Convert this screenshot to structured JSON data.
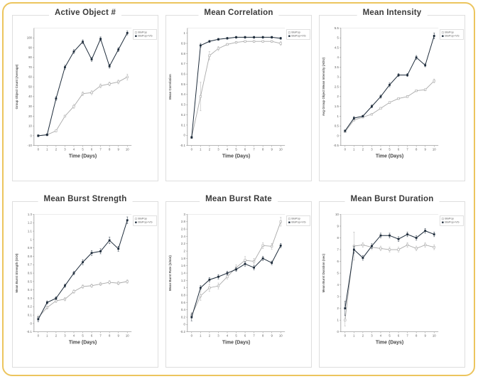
{
  "panel": {
    "border_color": "#ecc55e",
    "background": "#ffffff"
  },
  "palette": {
    "series_dark": "#1d2b3a",
    "series_light": "#a9a9a9",
    "axis": "#8c8c8c",
    "tick_text": "#5a5a5a",
    "title_text": "#3a3a3a"
  },
  "series_labels": [
    "BioPop",
    "BioPop+VG"
  ],
  "chart_data": [
    {
      "type": "line",
      "title": "Active Object #",
      "xlabel": "Time (Days)",
      "ylabel": "Group Object Count (Average)",
      "x": [
        0,
        1,
        2,
        3,
        4,
        5,
        6,
        7,
        8,
        9,
        10
      ],
      "yticks": [
        -10,
        0,
        10,
        20,
        30,
        40,
        50,
        60,
        70,
        80,
        90,
        100
      ],
      "ylim": [
        -10,
        110
      ],
      "legend_position": "right-top",
      "series": [
        {
          "name": "BioPop",
          "color": "#a9a9a9",
          "marker": "open-square",
          "values": [
            0,
            1,
            5,
            20,
            30,
            43,
            44,
            51,
            53,
            55,
            60
          ],
          "err": [
            1,
            1,
            1,
            1,
            2,
            2,
            2,
            2,
            2,
            2,
            3
          ]
        },
        {
          "name": "BioPop+VG",
          "color": "#1d2b3a",
          "marker": "filled-square",
          "values": [
            0,
            1,
            38,
            70,
            86,
            96,
            78,
            99,
            71,
            88,
            105
          ],
          "err": [
            1,
            1,
            2,
            2,
            2,
            2,
            2,
            2,
            2,
            2,
            2
          ]
        }
      ]
    },
    {
      "type": "line",
      "title": "Mean Correlation",
      "xlabel": "Time (Days)",
      "ylabel": "Mean Correlation",
      "x": [
        0,
        1,
        2,
        3,
        4,
        5,
        6,
        7,
        8,
        9,
        10
      ],
      "yticks": [
        -0.1,
        0,
        0.1,
        0.2,
        0.3,
        0.4,
        0.5,
        0.6,
        0.7,
        0.8,
        0.9,
        1
      ],
      "ylim": [
        -0.1,
        1.05
      ],
      "legend_position": "right-top",
      "series": [
        {
          "name": "BioPop",
          "color": "#a9a9a9",
          "marker": "open-square",
          "values": [
            -0.02,
            0.38,
            0.78,
            0.85,
            0.89,
            0.91,
            0.92,
            0.92,
            0.92,
            0.92,
            0.9
          ],
          "err": [
            0.01,
            0.14,
            0.04,
            0.02,
            0.01,
            0.01,
            0.01,
            0.01,
            0.01,
            0.01,
            0.02
          ]
        },
        {
          "name": "BioPop+VG",
          "color": "#1d2b3a",
          "marker": "filled-square",
          "values": [
            -0.02,
            0.88,
            0.92,
            0.94,
            0.95,
            0.96,
            0.96,
            0.96,
            0.96,
            0.96,
            0.95
          ],
          "err": [
            0.01,
            0.02,
            0.01,
            0.01,
            0.01,
            0.01,
            0.01,
            0.01,
            0.01,
            0.01,
            0.01
          ]
        }
      ]
    },
    {
      "type": "line",
      "title": "Mean Intensity",
      "xlabel": "Time (Days)",
      "ylabel": "Avg Group Object Mean Intensity (ADU)",
      "x": [
        0,
        1,
        2,
        3,
        4,
        5,
        6,
        7,
        8,
        9,
        10
      ],
      "yticks": [
        -0.5,
        0,
        0.5,
        1,
        1.5,
        2,
        2.5,
        3,
        3.5,
        4,
        4.5,
        5,
        5.5
      ],
      "ylim": [
        -0.5,
        5.5
      ],
      "legend_position": "right-top",
      "series": [
        {
          "name": "BioPop",
          "color": "#a9a9a9",
          "marker": "open-square",
          "values": [
            0.2,
            0.8,
            0.95,
            1.1,
            1.4,
            1.7,
            1.9,
            2.0,
            2.3,
            2.35,
            2.8
          ],
          "err": [
            0.05,
            0.05,
            0.05,
            0.05,
            0.05,
            0.05,
            0.05,
            0.05,
            0.05,
            0.05,
            0.1
          ]
        },
        {
          "name": "BioPop+VG",
          "color": "#1d2b3a",
          "marker": "filled-square",
          "values": [
            0.25,
            0.9,
            1.0,
            1.5,
            2.0,
            2.6,
            3.1,
            3.1,
            4.0,
            3.6,
            5.1
          ],
          "err": [
            0.05,
            0.08,
            0.05,
            0.08,
            0.08,
            0.1,
            0.08,
            0.08,
            0.1,
            0.08,
            0.15
          ]
        }
      ]
    },
    {
      "type": "line",
      "title": "Mean Burst Strength",
      "xlabel": "Time (Days)",
      "ylabel": "Mean Burst Strength (OOI)",
      "x": [
        0,
        1,
        2,
        3,
        4,
        5,
        6,
        7,
        8,
        9,
        10
      ],
      "yticks": [
        -0.1,
        0,
        0.1,
        0.2,
        0.3,
        0.4,
        0.5,
        0.6,
        0.7,
        0.8,
        0.9,
        1,
        1.1,
        1.2,
        1.3
      ],
      "ylim": [
        -0.1,
        1.3
      ],
      "legend_position": "right-top",
      "series": [
        {
          "name": "BioPop",
          "color": "#a9a9a9",
          "marker": "open-square",
          "values": [
            0.07,
            0.19,
            0.27,
            0.29,
            0.38,
            0.44,
            0.45,
            0.47,
            0.49,
            0.48,
            0.5
          ],
          "err": [
            0.03,
            0.02,
            0.02,
            0.02,
            0.02,
            0.02,
            0.02,
            0.02,
            0.02,
            0.02,
            0.02
          ]
        },
        {
          "name": "BioPop+VG",
          "color": "#1d2b3a",
          "marker": "filled-square",
          "values": [
            0.05,
            0.25,
            0.3,
            0.45,
            0.6,
            0.73,
            0.84,
            0.86,
            0.99,
            0.89,
            1.23
          ],
          "err": [
            0.03,
            0.02,
            0.02,
            0.02,
            0.02,
            0.03,
            0.03,
            0.03,
            0.04,
            0.03,
            0.04
          ]
        }
      ]
    },
    {
      "type": "line",
      "title": "Mean Burst Rate",
      "xlabel": "Time (Days)",
      "ylabel": "Mean Burst Rate (1/min)",
      "x": [
        0,
        1,
        2,
        3,
        4,
        5,
        6,
        7,
        8,
        9,
        10
      ],
      "yticks": [
        -0.2,
        0,
        0.2,
        0.4,
        0.6,
        0.8,
        1,
        1.2,
        1.4,
        1.6,
        1.8,
        2,
        2.2,
        2.4,
        2.6,
        2.8,
        3
      ],
      "ylim": [
        -0.2,
        3.0
      ],
      "legend_position": "right-top",
      "series": [
        {
          "name": "BioPop",
          "color": "#a9a9a9",
          "marker": "open-square",
          "values": [
            0.25,
            0.78,
            1.0,
            1.05,
            1.3,
            1.55,
            1.75,
            1.72,
            2.15,
            2.13,
            2.8
          ],
          "err": [
            0.08,
            0.12,
            0.1,
            0.08,
            0.06,
            0.08,
            0.1,
            0.08,
            0.08,
            0.08,
            0.12
          ]
        },
        {
          "name": "BioPop+VG",
          "color": "#1d2b3a",
          "marker": "filled-square",
          "values": [
            0.2,
            1.0,
            1.22,
            1.3,
            1.4,
            1.5,
            1.65,
            1.55,
            1.8,
            1.68,
            2.15
          ],
          "err": [
            0.1,
            0.06,
            0.06,
            0.06,
            0.05,
            0.05,
            0.06,
            0.06,
            0.06,
            0.05,
            0.06
          ]
        }
      ]
    },
    {
      "type": "line",
      "title": "Mean Burst Duration",
      "xlabel": "Time (Days)",
      "ylabel": "Mean Burst Duration (sec)",
      "x": [
        0,
        1,
        2,
        3,
        4,
        5,
        6,
        7,
        8,
        9,
        10
      ],
      "yticks": [
        0,
        1,
        2,
        3,
        4,
        5,
        6,
        7,
        8,
        9,
        10
      ],
      "ylim": [
        0,
        10
      ],
      "legend_position": "right-top",
      "series": [
        {
          "name": "BioPop",
          "color": "#a9a9a9",
          "marker": "open-square",
          "values": [
            1.0,
            7.3,
            7.4,
            7.2,
            7.1,
            7.0,
            7.0,
            7.4,
            7.1,
            7.4,
            7.2
          ],
          "err": [
            0.5,
            1.2,
            0.2,
            0.2,
            0.2,
            0.2,
            0.2,
            0.2,
            0.2,
            0.2,
            0.2
          ]
        },
        {
          "name": "BioPop+VG",
          "color": "#1d2b3a",
          "marker": "filled-square",
          "values": [
            2.0,
            7.0,
            6.3,
            7.3,
            8.2,
            8.2,
            7.9,
            8.3,
            8.0,
            8.6,
            8.3
          ],
          "err": [
            0.6,
            0.3,
            0.2,
            0.2,
            0.2,
            0.2,
            0.2,
            0.2,
            0.2,
            0.2,
            0.2
          ]
        }
      ]
    }
  ]
}
